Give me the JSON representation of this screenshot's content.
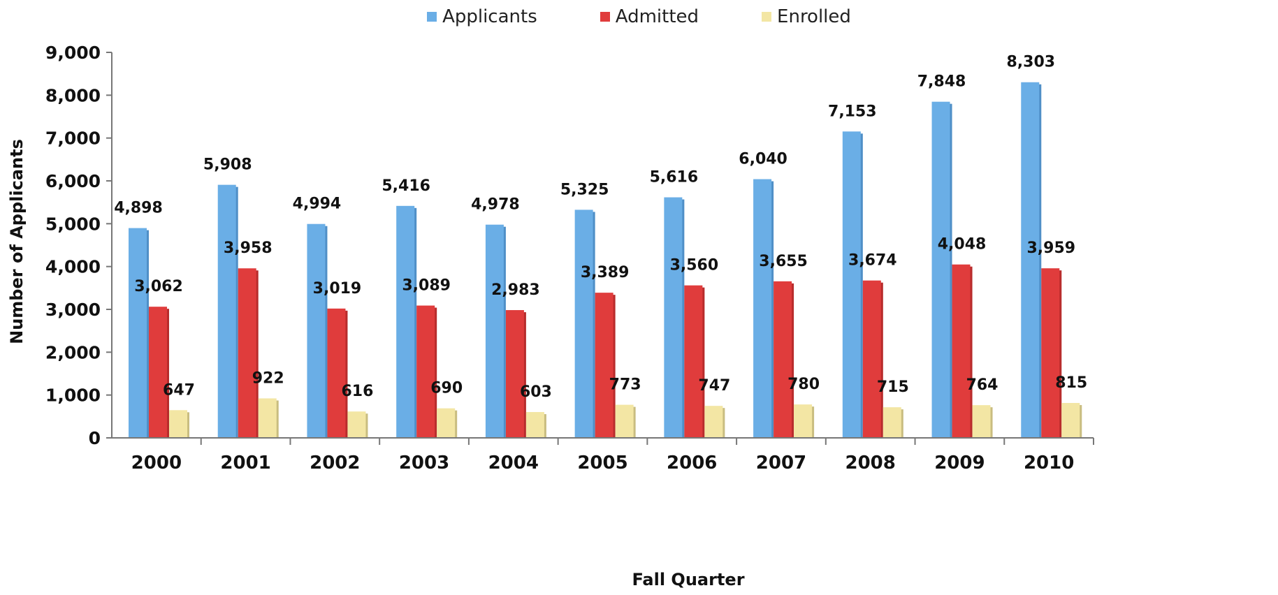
{
  "chart_data": {
    "type": "bar",
    "categories": [
      "2000",
      "2001",
      "2002",
      "2003",
      "2004",
      "2005",
      "2006",
      "2007",
      "2008",
      "2009",
      "2010"
    ],
    "series": [
      {
        "name": "Applicants",
        "color": "#6aaee6",
        "values": [
          4898,
          5908,
          4994,
          5416,
          4978,
          5325,
          5616,
          6040,
          7153,
          7848,
          8303
        ],
        "labels": [
          "4,898",
          "5,908",
          "4,994",
          "5,416",
          "4,978",
          "5,325",
          "5,616",
          "6,040",
          "7,153",
          "7,848",
          "8,303"
        ]
      },
      {
        "name": "Admitted",
        "color": "#e03c3c",
        "values": [
          3062,
          3958,
          3019,
          3089,
          2983,
          3389,
          3560,
          3655,
          3674,
          4048,
          3959
        ],
        "labels": [
          "3,062",
          "3,958",
          "3,019",
          "3,089",
          "2,983",
          "3,389",
          "3,560",
          "3,655",
          "3,674",
          "4,048",
          "3,959"
        ]
      },
      {
        "name": "Enrolled",
        "color": "#f3e6a4",
        "values": [
          647,
          922,
          616,
          690,
          603,
          773,
          747,
          780,
          715,
          764,
          815
        ],
        "labels": [
          "647",
          "922",
          "616",
          "690",
          "603",
          "773",
          "747",
          "780",
          "715",
          "764",
          "815"
        ]
      }
    ],
    "xlabel": "Fall Quarter",
    "ylabel": "Number of Applicants",
    "ylim": [
      0,
      9000
    ],
    "yticks": [
      0,
      1000,
      2000,
      3000,
      4000,
      5000,
      6000,
      7000,
      8000,
      9000
    ],
    "ytick_labels": [
      "0",
      "1,000",
      "2,000",
      "3,000",
      "4,000",
      "5,000",
      "6,000",
      "7,000",
      "8,000",
      "9,000"
    ],
    "legend_position": "top-center",
    "grid": false
  }
}
